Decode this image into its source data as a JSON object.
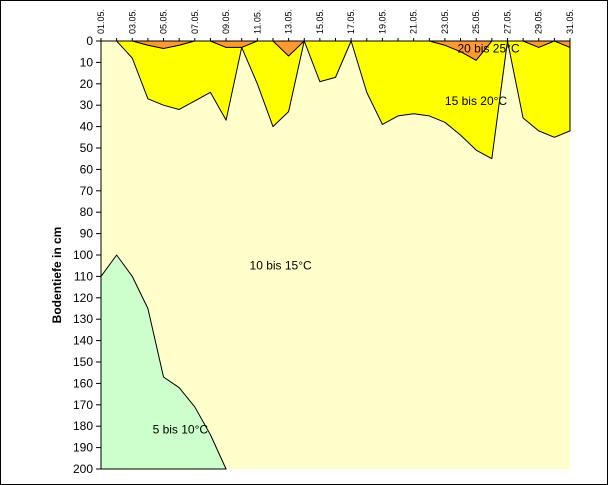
{
  "chart_data": {
    "type": "area",
    "title": "",
    "xlabel": "",
    "ylabel": "Bodentiefe in cm",
    "ylim": [
      0,
      200
    ],
    "y_reversed": true,
    "y_ticks": [
      0,
      10,
      20,
      30,
      40,
      50,
      60,
      70,
      80,
      90,
      100,
      110,
      120,
      130,
      140,
      150,
      160,
      170,
      180,
      190,
      200
    ],
    "x_ticks": [
      "01.05.",
      "03.05.",
      "05.05.",
      "07.05.",
      "09.05.",
      "11.05.",
      "13.05.",
      "15.05.",
      "17.05.",
      "19.05.",
      "21.05.",
      "23.05.",
      "25.05.",
      "27.05.",
      "29.05.",
      "31.05."
    ],
    "x_day_range": [
      1,
      31
    ],
    "colors": {
      "20 bis 25°C": "#FF9933",
      "15 bis 20°C": "#FFFF00",
      "10 bis 15°C": "#FFFFCC",
      "5 bis 10°C": "#CCFFCC"
    },
    "series": [
      {
        "name": "20 bis 25°C",
        "label_pos": [
          23.8,
          3.5
        ],
        "points": [
          [
            1,
            0
          ],
          [
            2,
            0
          ],
          [
            3,
            0
          ],
          [
            4,
            2
          ],
          [
            5,
            3.5
          ],
          [
            6,
            2
          ],
          [
            7,
            0
          ],
          [
            8,
            0
          ],
          [
            9,
            3
          ],
          [
            10,
            3
          ],
          [
            11,
            0
          ],
          [
            12,
            0
          ],
          [
            13,
            7
          ],
          [
            14,
            0
          ],
          [
            15,
            0
          ],
          [
            16,
            0
          ],
          [
            17,
            0
          ],
          [
            18,
            0
          ],
          [
            19,
            0
          ],
          [
            20,
            0
          ],
          [
            21,
            0
          ],
          [
            22,
            0
          ],
          [
            23,
            2
          ],
          [
            24,
            5
          ],
          [
            25,
            9
          ],
          [
            26,
            0
          ],
          [
            27,
            0
          ],
          [
            28,
            0
          ],
          [
            29,
            3
          ],
          [
            30,
            0
          ],
          [
            31,
            3
          ]
        ]
      },
      {
        "name": "15 bis 20°C",
        "label_pos": [
          23,
          28
        ],
        "points": [
          [
            1,
            0
          ],
          [
            2,
            0
          ],
          [
            3,
            8
          ],
          [
            4,
            27
          ],
          [
            5,
            30
          ],
          [
            6,
            32
          ],
          [
            7,
            28
          ],
          [
            8,
            24
          ],
          [
            9,
            37
          ],
          [
            10,
            3
          ],
          [
            11,
            20
          ],
          [
            12,
            40
          ],
          [
            13,
            33
          ],
          [
            14,
            0
          ],
          [
            15,
            19
          ],
          [
            16,
            17
          ],
          [
            17,
            0
          ],
          [
            18,
            24
          ],
          [
            19,
            39
          ],
          [
            20,
            35
          ],
          [
            21,
            34
          ],
          [
            22,
            35
          ],
          [
            23,
            38
          ],
          [
            24,
            44
          ],
          [
            25,
            51
          ],
          [
            26,
            55
          ],
          [
            27,
            0
          ],
          [
            28,
            36
          ],
          [
            29,
            42
          ],
          [
            30,
            45
          ],
          [
            31,
            42
          ]
        ]
      },
      {
        "name": "10 bis 15°C",
        "label_pos": [
          10.5,
          105
        ]
      },
      {
        "name": "5 bis 10°C",
        "label_pos": [
          4.3,
          181.5
        ],
        "points": [
          [
            1,
            110
          ],
          [
            2,
            100
          ],
          [
            3,
            110
          ],
          [
            4,
            125
          ],
          [
            5,
            157
          ],
          [
            6,
            162
          ],
          [
            7,
            171
          ],
          [
            8,
            184
          ],
          [
            9,
            200
          ]
        ]
      }
    ]
  }
}
